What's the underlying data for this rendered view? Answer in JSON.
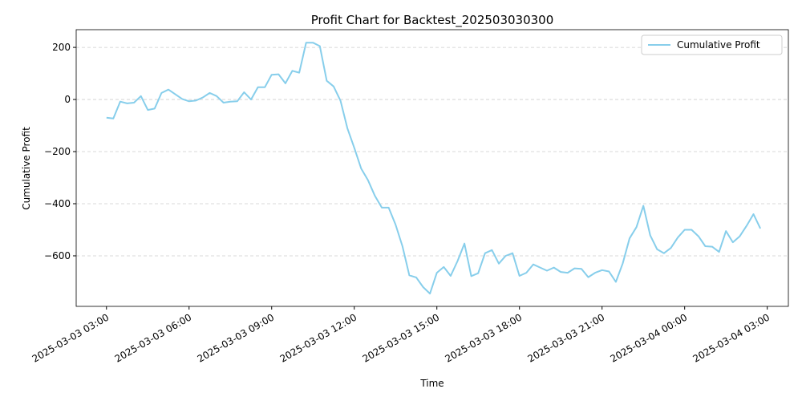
{
  "chart_data": {
    "type": "line",
    "title": "Profit Chart for Backtest_202503030300",
    "x_label": "Time",
    "y_label": "Cumulative Profit",
    "x": [
      "2025-03-03 03:00",
      "2025-03-03 03:15",
      "2025-03-03 03:30",
      "2025-03-03 03:45",
      "2025-03-03 04:00",
      "2025-03-03 04:15",
      "2025-03-03 04:30",
      "2025-03-03 04:45",
      "2025-03-03 05:00",
      "2025-03-03 05:15",
      "2025-03-03 05:30",
      "2025-03-03 05:45",
      "2025-03-03 06:00",
      "2025-03-03 06:15",
      "2025-03-03 06:30",
      "2025-03-03 06:45",
      "2025-03-03 07:00",
      "2025-03-03 07:15",
      "2025-03-03 07:30",
      "2025-03-03 07:45",
      "2025-03-03 08:00",
      "2025-03-03 08:15",
      "2025-03-03 08:30",
      "2025-03-03 08:45",
      "2025-03-03 09:00",
      "2025-03-03 09:15",
      "2025-03-03 09:30",
      "2025-03-03 09:45",
      "2025-03-03 10:00",
      "2025-03-03 10:15",
      "2025-03-03 10:30",
      "2025-03-03 10:45",
      "2025-03-03 11:00",
      "2025-03-03 11:15",
      "2025-03-03 11:30",
      "2025-03-03 11:45",
      "2025-03-03 12:00",
      "2025-03-03 12:15",
      "2025-03-03 12:30",
      "2025-03-03 12:45",
      "2025-03-03 13:00",
      "2025-03-03 13:15",
      "2025-03-03 13:30",
      "2025-03-03 13:45",
      "2025-03-03 14:00",
      "2025-03-03 14:15",
      "2025-03-03 14:30",
      "2025-03-03 14:45",
      "2025-03-03 15:00",
      "2025-03-03 15:15",
      "2025-03-03 15:30",
      "2025-03-03 15:45",
      "2025-03-03 16:00",
      "2025-03-03 16:15",
      "2025-03-03 16:30",
      "2025-03-03 16:45",
      "2025-03-03 17:00",
      "2025-03-03 17:15",
      "2025-03-03 17:30",
      "2025-03-03 17:45",
      "2025-03-03 18:00",
      "2025-03-03 18:15",
      "2025-03-03 18:30",
      "2025-03-03 18:45",
      "2025-03-03 19:00",
      "2025-03-03 19:15",
      "2025-03-03 19:30",
      "2025-03-03 19:45",
      "2025-03-03 20:00",
      "2025-03-03 20:15",
      "2025-03-03 20:30",
      "2025-03-03 20:45",
      "2025-03-03 21:00",
      "2025-03-03 21:15",
      "2025-03-03 21:30",
      "2025-03-03 21:45",
      "2025-03-03 22:00",
      "2025-03-03 22:15",
      "2025-03-03 22:30",
      "2025-03-03 22:45",
      "2025-03-03 23:00",
      "2025-03-03 23:15",
      "2025-03-03 23:30",
      "2025-03-03 23:45",
      "2025-03-04 00:00",
      "2025-03-04 00:15",
      "2025-03-04 00:30",
      "2025-03-04 00:45",
      "2025-03-04 01:00",
      "2025-03-04 01:15",
      "2025-03-04 01:30",
      "2025-03-04 01:45",
      "2025-03-04 02:00",
      "2025-03-04 02:15",
      "2025-03-04 02:30",
      "2025-03-04 02:45"
    ],
    "series": [
      {
        "name": "Cumulative Profit",
        "color": "#87ceeb",
        "values": [
          -70,
          -73,
          -8,
          -15,
          -12,
          13,
          -40,
          -35,
          25,
          38,
          20,
          2,
          -7,
          -4,
          8,
          25,
          13,
          -12,
          -8,
          -7,
          28,
          0,
          47,
          47,
          95,
          97,
          62,
          110,
          103,
          218,
          218,
          205,
          72,
          50,
          -5,
          -110,
          -185,
          -265,
          -310,
          -370,
          -415,
          -415,
          -480,
          -563,
          -675,
          -683,
          -720,
          -745,
          -665,
          -643,
          -677,
          -620,
          -553,
          -678,
          -667,
          -590,
          -578,
          -630,
          -600,
          -590,
          -677,
          -665,
          -633,
          -645,
          -657,
          -645,
          -662,
          -665,
          -648,
          -650,
          -682,
          -665,
          -655,
          -660,
          -700,
          -630,
          -533,
          -490,
          -408,
          -522,
          -575,
          -590,
          -570,
          -530,
          -500,
          -500,
          -525,
          -563,
          -565,
          -585,
          -505,
          -548,
          -525,
          -485,
          -440,
          -495
        ]
      }
    ],
    "xlim": [
      "2025-03-03 01:54",
      "2025-03-04 03:46"
    ],
    "xticks": [
      "2025-03-03 03:00",
      "2025-03-03 06:00",
      "2025-03-03 09:00",
      "2025-03-03 12:00",
      "2025-03-03 15:00",
      "2025-03-03 18:00",
      "2025-03-03 21:00",
      "2025-03-04 00:00",
      "2025-03-04 03:00"
    ],
    "ylim": [
      -794,
      268
    ],
    "yticks": [
      {
        "value": -600,
        "label": "−600"
      },
      {
        "value": -400,
        "label": "−400"
      },
      {
        "value": -200,
        "label": "−200"
      },
      0,
      200
    ],
    "grid": true,
    "legend": "upper right"
  }
}
